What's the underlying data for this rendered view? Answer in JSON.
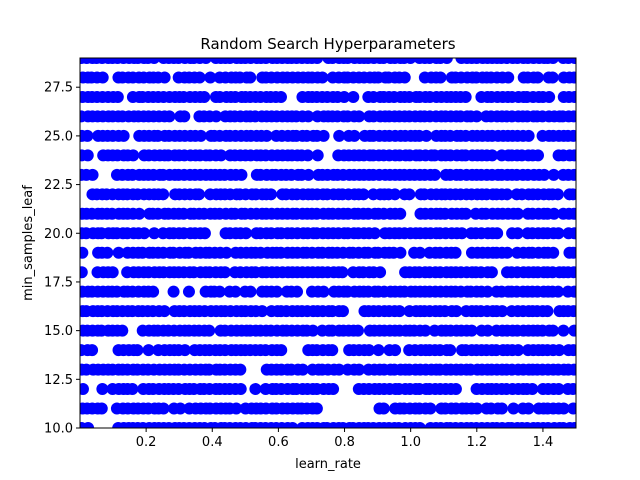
{
  "chart_data": {
    "type": "scatter",
    "title": "Random Search Hyperparameters",
    "xlabel": "learn_rate",
    "ylabel": "min_samples_leaf",
    "xlim": [
      0.0,
      1.5
    ],
    "ylim": [
      10,
      29
    ],
    "xticks": [
      "0.2",
      "0.4",
      "0.6",
      "0.8",
      "1.0",
      "1.2",
      "1.4"
    ],
    "yticks": [
      "10.0",
      "12.5",
      "15.0",
      "17.5",
      "20.0",
      "22.5",
      "25.0",
      "27.5"
    ],
    "grid": false,
    "marker_color": "#0000ff",
    "series": [
      {
        "description": "Dense random samples: learn_rate values spread uniformly from ~0.01 to 1.5, min_samples_leaf integer values 10–29, roughly 80% fill per row",
        "rows": [
          {
            "y": 10,
            "gaps": [
              [
                0.03,
                0.1
              ]
            ]
          },
          {
            "y": 11,
            "gaps": [
              [
                0.07,
                0.1
              ],
              [
                0.73,
                0.9
              ],
              [
                1.2,
                1.22
              ],
              [
                1.31,
                1.33
              ],
              [
                1.36,
                1.38
              ]
            ]
          },
          {
            "y": 12,
            "gaps": [
              [
                0.01,
                0.06
              ],
              [
                0.49,
                0.52
              ],
              [
                0.78,
                0.84
              ],
              [
                1.14,
                1.19
              ]
            ]
          },
          {
            "y": 13,
            "gaps": [
              [
                0.5,
                0.55
              ],
              [
                0.85,
                0.87
              ]
            ]
          },
          {
            "y": 14,
            "gaps": [
              [
                0.05,
                0.1
              ],
              [
                0.62,
                0.68
              ],
              [
                0.78,
                0.8
              ],
              [
                1.33,
                1.35
              ],
              [
                1.45,
                1.47
              ]
            ]
          },
          {
            "y": 15,
            "gaps": [
              [
                0.16,
                0.18
              ],
              [
                1.19,
                1.21
              ],
              [
                1.24,
                1.25
              ]
            ]
          },
          {
            "y": 16,
            "gaps": [
              [
                0.26,
                0.28
              ],
              [
                0.81,
                0.85
              ],
              [
                1.28,
                1.3
              ],
              [
                1.42,
                1.44
              ]
            ]
          },
          {
            "y": 17,
            "gaps": [
              [
                0.3,
                0.33
              ],
              [
                0.67,
                0.69
              ],
              [
                1.24,
                1.26
              ],
              [
                1.45,
                1.47
              ]
            ]
          },
          {
            "y": 18,
            "gaps": [
              [
                0.02,
                0.05
              ],
              [
                0.11,
                0.13
              ],
              [
                0.92,
                0.98
              ],
              [
                1.25,
                1.28
              ]
            ]
          },
          {
            "y": 19,
            "gaps": [
              [
                0.01,
                0.04
              ],
              [
                0.45,
                0.47
              ],
              [
                0.98,
                1.0
              ],
              [
                1.15,
                1.17
              ],
              [
                1.3,
                1.32
              ],
              [
                1.45,
                1.47
              ]
            ]
          },
          {
            "y": 20,
            "gaps": [
              [
                0.39,
                0.44
              ],
              [
                1.45,
                1.47
              ]
            ]
          },
          {
            "y": 21,
            "gaps": [
              [
                0.97,
                1.0
              ],
              [
                1.17,
                1.19
              ],
              [
                1.33,
                1.35
              ]
            ]
          },
          {
            "y": 22,
            "gaps": [
              [
                0.26,
                0.28
              ],
              [
                0.86,
                0.88
              ],
              [
                1.45,
                1.47
              ]
            ]
          },
          {
            "y": 23,
            "gaps": [
              [
                0.05,
                0.1
              ],
              [
                0.5,
                0.53
              ],
              [
                1.08,
                1.1
              ],
              [
                1.41,
                1.43
              ]
            ]
          },
          {
            "y": 24,
            "gaps": [
              [
                0.03,
                0.06
              ],
              [
                0.72,
                0.78
              ],
              [
                1.25,
                1.27
              ],
              [
                1.4,
                1.44
              ]
            ]
          },
          {
            "y": 25,
            "gaps": [
              [
                0.15,
                0.17
              ],
              [
                0.74,
                0.77
              ],
              [
                1.37,
                1.39
              ]
            ]
          },
          {
            "y": 26,
            "gaps": [
              [
                0.32,
                0.35
              ],
              [
                0.85,
                0.87
              ]
            ]
          },
          {
            "y": 27,
            "gaps": [
              [
                0.13,
                0.15
              ],
              [
                0.62,
                0.66
              ],
              [
                1.18,
                1.2
              ],
              [
                1.43,
                1.46
              ]
            ]
          },
          {
            "y": 28,
            "gaps": [
              [
                0.07,
                0.1
              ],
              [
                0.26,
                0.29
              ],
              [
                0.52,
                0.54
              ],
              [
                0.99,
                1.03
              ],
              [
                1.3,
                1.33
              ],
              [
                1.44,
                1.46
              ]
            ]
          },
          {
            "y": 29,
            "gaps": [
              [
                0.38,
                0.4
              ],
              [
                0.72,
                0.74
              ],
              [
                1.13,
                1.15
              ]
            ]
          }
        ]
      }
    ]
  }
}
